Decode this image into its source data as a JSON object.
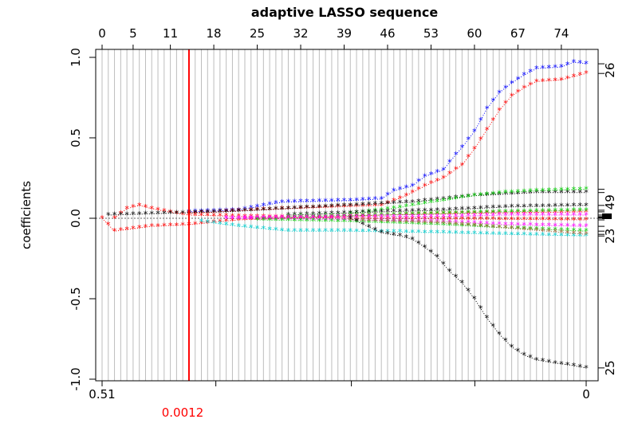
{
  "chart_data": {
    "type": "line",
    "title": "adaptive LASSO sequence",
    "ylabel": "coefficients",
    "xlabel": "",
    "ylim": [
      -1.0,
      1.0
    ],
    "y_ticks": [
      "-1.0",
      "-0.5",
      "0.0",
      "0.5",
      "1.0"
    ],
    "x_tick_labels": [
      "0.51",
      "0"
    ],
    "top_axis_ticks": [
      "0",
      "5",
      "11",
      "18",
      "25",
      "32",
      "39",
      "46",
      "53",
      "60",
      "67",
      "74"
    ],
    "right_axis_labels": [
      "26",
      "49",
      "23",
      "25"
    ],
    "selected_lambda": {
      "label": "0.0012",
      "step": 14,
      "color": "#ff0000"
    },
    "steps": 78,
    "grid": true,
    "series": [
      {
        "color": "#0000ff",
        "points": [
          [
            14,
            0.04
          ],
          [
            22,
            0.05
          ],
          [
            29,
            0.1
          ],
          [
            40,
            0.11
          ],
          [
            45,
            0.12
          ],
          [
            47,
            0.17
          ],
          [
            50,
            0.2
          ],
          [
            52,
            0.26
          ],
          [
            55,
            0.3
          ],
          [
            56,
            0.35
          ],
          [
            58,
            0.44
          ],
          [
            60,
            0.54
          ],
          [
            62,
            0.68
          ],
          [
            64,
            0.78
          ],
          [
            66,
            0.84
          ],
          [
            68,
            0.89
          ],
          [
            70,
            0.93
          ],
          [
            74,
            0.94
          ],
          [
            76,
            0.97
          ],
          [
            78,
            0.96
          ]
        ]
      },
      {
        "color": "#ff0000",
        "points": [
          [
            14,
            0.03
          ],
          [
            24,
            0.05
          ],
          [
            30,
            0.06
          ],
          [
            45,
            0.08
          ],
          [
            49,
            0.14
          ],
          [
            52,
            0.2
          ],
          [
            55,
            0.25
          ],
          [
            58,
            0.33
          ],
          [
            60,
            0.43
          ],
          [
            62,
            0.55
          ],
          [
            64,
            0.67
          ],
          [
            66,
            0.76
          ],
          [
            68,
            0.81
          ],
          [
            70,
            0.85
          ],
          [
            74,
            0.86
          ],
          [
            76,
            0.88
          ],
          [
            78,
            0.9
          ]
        ]
      },
      {
        "color": "#ff0000",
        "points": [
          [
            0,
            0
          ],
          [
            2,
            -0.08
          ],
          [
            4,
            -0.07
          ],
          [
            8,
            -0.05
          ],
          [
            14,
            -0.04
          ],
          [
            22,
            -0.01
          ],
          [
            30,
            0
          ],
          [
            45,
            0.02
          ],
          [
            60,
            0.03
          ],
          [
            78,
            0.04
          ]
        ]
      },
      {
        "color": "#ff0000",
        "points": [
          [
            2,
            0
          ],
          [
            4,
            0.06
          ],
          [
            6,
            0.08
          ],
          [
            8,
            0.06
          ],
          [
            12,
            0.03
          ],
          [
            14,
            0.02
          ],
          [
            24,
            0.01
          ],
          [
            40,
            0
          ],
          [
            78,
            -0.01
          ]
        ]
      },
      {
        "color": "#000000",
        "points": [
          [
            1,
            0.02
          ],
          [
            10,
            0.03
          ],
          [
            20,
            0.04
          ],
          [
            30,
            0.06
          ],
          [
            45,
            0.09
          ],
          [
            50,
            0.1
          ],
          [
            55,
            0.12
          ],
          [
            60,
            0.14
          ],
          [
            65,
            0.15
          ],
          [
            70,
            0.16
          ],
          [
            78,
            0.16
          ]
        ]
      },
      {
        "color": "#00cc00",
        "points": [
          [
            40,
            0.03
          ],
          [
            45,
            0.05
          ],
          [
            50,
            0.08
          ],
          [
            55,
            0.11
          ],
          [
            60,
            0.14
          ],
          [
            65,
            0.16
          ],
          [
            70,
            0.17
          ],
          [
            78,
            0.18
          ]
        ]
      },
      {
        "color": "#000000",
        "points": [
          [
            30,
            0.02
          ],
          [
            45,
            0.04
          ],
          [
            55,
            0.05
          ],
          [
            65,
            0.07
          ],
          [
            78,
            0.08
          ]
        ]
      },
      {
        "color": "#00cc00",
        "points": [
          [
            30,
            0.01
          ],
          [
            45,
            0.02
          ],
          [
            55,
            0.03
          ],
          [
            65,
            0.04
          ],
          [
            78,
            0.05
          ]
        ]
      },
      {
        "color": "#ff00ff",
        "points": [
          [
            20,
            0
          ],
          [
            40,
            0.01
          ],
          [
            55,
            0.01
          ],
          [
            65,
            0.02
          ],
          [
            78,
            0.02
          ]
        ]
      },
      {
        "color": "#ff00ff",
        "points": [
          [
            20,
            0
          ],
          [
            40,
            -0.01
          ],
          [
            55,
            -0.02
          ],
          [
            65,
            -0.04
          ],
          [
            78,
            -0.05
          ]
        ]
      },
      {
        "color": "#00cc00",
        "points": [
          [
            25,
            -0.01
          ],
          [
            40,
            -0.02
          ],
          [
            55,
            -0.04
          ],
          [
            65,
            -0.06
          ],
          [
            78,
            -0.08
          ]
        ]
      },
      {
        "color": "#00cccc",
        "points": [
          [
            16,
            -0.02
          ],
          [
            22,
            -0.05
          ],
          [
            30,
            -0.08
          ],
          [
            40,
            -0.08
          ],
          [
            55,
            -0.09
          ],
          [
            65,
            -0.1
          ],
          [
            78,
            -0.11
          ]
        ]
      },
      {
        "color": "#996633",
        "points": [
          [
            40,
            -0.01
          ],
          [
            55,
            -0.03
          ],
          [
            65,
            -0.06
          ],
          [
            78,
            -0.1
          ]
        ]
      },
      {
        "color": "#000000",
        "points": [
          [
            40,
            0
          ],
          [
            45,
            -0.09
          ],
          [
            48,
            -0.11
          ],
          [
            50,
            -0.13
          ],
          [
            52,
            -0.18
          ],
          [
            54,
            -0.24
          ],
          [
            56,
            -0.33
          ],
          [
            58,
            -0.4
          ],
          [
            60,
            -0.5
          ],
          [
            62,
            -0.62
          ],
          [
            64,
            -0.72
          ],
          [
            66,
            -0.8
          ],
          [
            68,
            -0.85
          ],
          [
            70,
            -0.88
          ],
          [
            73,
            -0.9
          ],
          [
            75,
            -0.91
          ],
          [
            78,
            -0.93
          ]
        ]
      }
    ]
  }
}
